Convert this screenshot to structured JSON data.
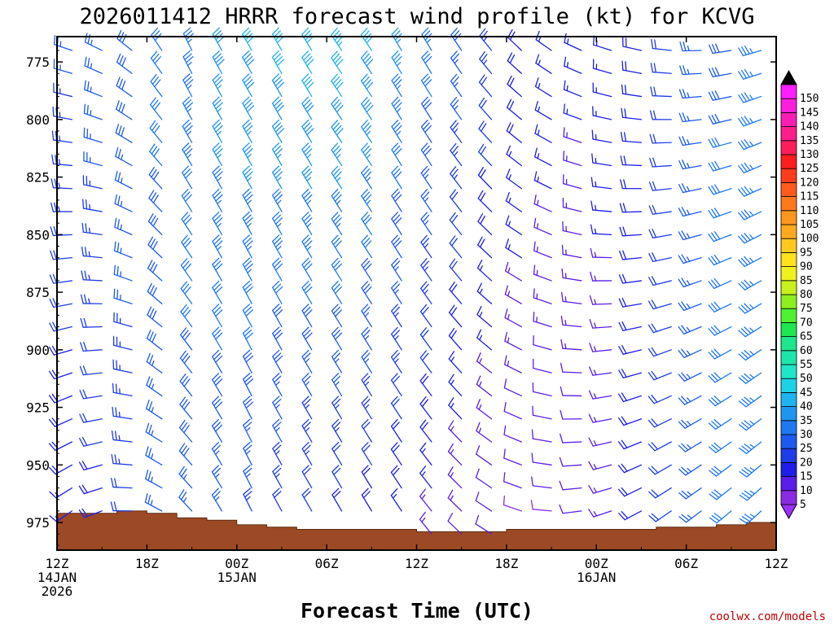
{
  "chart_data": {
    "type": "wind-barb time-height",
    "title": "2026011412 HRRR forecast wind profile (kt) for KCVG",
    "xlabel": "Forecast Time (UTC)",
    "ylabel": "",
    "credit": "coolwx.com/models",
    "x_range_hours": [
      0,
      48
    ],
    "y_range_hpa": [
      764,
      987
    ],
    "y_ticks": [
      775,
      800,
      825,
      850,
      875,
      900,
      925,
      950,
      975
    ],
    "x_ticks": [
      {
        "hour": 0,
        "lines": [
          "12Z",
          "14JAN",
          "2026"
        ]
      },
      {
        "hour": 6,
        "lines": [
          "18Z"
        ]
      },
      {
        "hour": 12,
        "lines": [
          "00Z",
          "15JAN"
        ]
      },
      {
        "hour": 18,
        "lines": [
          "06Z"
        ]
      },
      {
        "hour": 24,
        "lines": [
          "12Z"
        ]
      },
      {
        "hour": 30,
        "lines": [
          "18Z"
        ]
      },
      {
        "hour": 36,
        "lines": [
          "00Z",
          "16JAN"
        ]
      },
      {
        "hour": 42,
        "lines": [
          "06Z"
        ]
      },
      {
        "hour": 48,
        "lines": [
          "12Z"
        ]
      }
    ],
    "barb_levels_hpa": [
      770,
      780,
      790,
      800,
      810,
      820,
      830,
      840,
      850,
      860,
      870,
      880,
      890,
      900,
      910,
      920,
      930,
      940,
      950,
      960,
      970,
      980
    ],
    "barb_hours": [
      1,
      3,
      5,
      7,
      9,
      11,
      13,
      15,
      17,
      19,
      21,
      23,
      25,
      27,
      29,
      31,
      33,
      35,
      37,
      39,
      41,
      43,
      45,
      47
    ],
    "surface_pressure_by_hour": [
      [
        0,
        971
      ],
      [
        2,
        971
      ],
      [
        4,
        970
      ],
      [
        6,
        971
      ],
      [
        8,
        973
      ],
      [
        10,
        974
      ],
      [
        12,
        976
      ],
      [
        14,
        977
      ],
      [
        16,
        978
      ],
      [
        18,
        978
      ],
      [
        20,
        978
      ],
      [
        22,
        978
      ],
      [
        24,
        979
      ],
      [
        26,
        979
      ],
      [
        28,
        979
      ],
      [
        30,
        978
      ],
      [
        32,
        978
      ],
      [
        34,
        978
      ],
      [
        36,
        978
      ],
      [
        38,
        978
      ],
      [
        40,
        977
      ],
      [
        42,
        977
      ],
      [
        44,
        976
      ],
      [
        46,
        975
      ],
      [
        48,
        973
      ]
    ],
    "wind_keyframes": [
      {
        "hour": 0,
        "dir_top": 285,
        "dir_bot": 225,
        "spd_top": 25,
        "spd_bot": 15
      },
      {
        "hour": 4,
        "dir_top": 300,
        "dir_bot": 255,
        "spd_top": 28,
        "spd_bot": 20
      },
      {
        "hour": 8,
        "dir_top": 335,
        "dir_bot": 310,
        "spd_top": 33,
        "spd_bot": 27
      },
      {
        "hour": 12,
        "dir_top": 330,
        "dir_bot": 335,
        "spd_top": 40,
        "spd_bot": 25
      },
      {
        "hour": 16,
        "dir_top": 330,
        "dir_bot": 330,
        "spd_top": 42,
        "spd_bot": 20
      },
      {
        "hour": 20,
        "dir_top": 325,
        "dir_bot": 330,
        "spd_top": 43,
        "spd_bot": 18
      },
      {
        "hour": 24,
        "dir_top": 330,
        "dir_bot": 325,
        "spd_top": 35,
        "spd_bot": 15
      },
      {
        "hour": 28,
        "dir_top": 325,
        "dir_bot": 310,
        "spd_top": 25,
        "spd_bot": 11
      },
      {
        "hour": 32,
        "dir_top": 310,
        "dir_bot": 280,
        "spd_top": 18,
        "spd_bot": 9
      },
      {
        "hour": 36,
        "dir_top": 290,
        "dir_bot": 255,
        "spd_top": 15,
        "spd_bot": 11
      },
      {
        "hour": 40,
        "dir_top": 280,
        "dir_bot": 235,
        "spd_top": 20,
        "spd_bot": 20
      },
      {
        "hour": 44,
        "dir_top": 265,
        "dir_bot": 230,
        "spd_top": 28,
        "spd_bot": 30
      },
      {
        "hour": 48,
        "dir_top": 250,
        "dir_bot": 225,
        "spd_top": 35,
        "spd_bot": 35
      }
    ],
    "colorbar": {
      "labels": [
        "5",
        "10",
        "15",
        "20",
        "25",
        "30",
        "35",
        "40",
        "45",
        "50",
        "55",
        "60",
        "65",
        "70",
        "75",
        "80",
        "85",
        "90",
        "95",
        "100",
        "105",
        "110",
        "115",
        "120",
        "125",
        "130",
        "135",
        "140",
        "145",
        "150"
      ],
      "lower_arrow_color": "#9b30ff",
      "upper_arrow_color": "#000000",
      "colors": [
        "#8a2be2",
        "#5a1ee8",
        "#1e1ee6",
        "#1e3ce8",
        "#1e5af0",
        "#1e78f0",
        "#1e96f0",
        "#1eb4f0",
        "#1ed2e6",
        "#1ee6c8",
        "#1ee6aa",
        "#1ee68c",
        "#1ee650",
        "#50f032",
        "#8cf01e",
        "#c8f01e",
        "#f0f01e",
        "#ffe11e",
        "#ffc81e",
        "#ffaa1e",
        "#ff961e",
        "#ff781e",
        "#ff5a1e",
        "#ff3c1e",
        "#ff1e1e",
        "#ff1e5a",
        "#ff1e8c",
        "#ff1eb4",
        "#ff1edc",
        "#ff1eff"
      ]
    }
  }
}
